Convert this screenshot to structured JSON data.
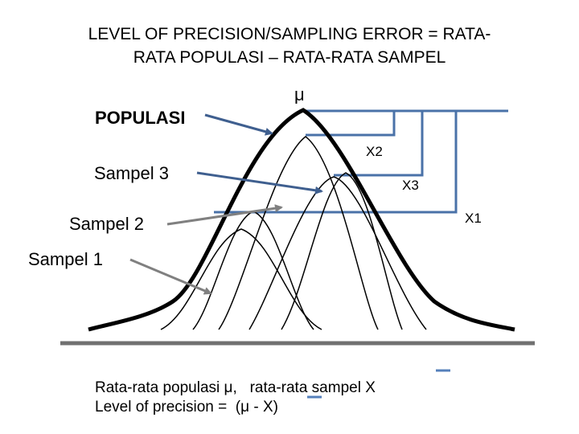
{
  "title": {
    "line1": "LEVEL OF PRECISION/SAMPLING ERROR = RATA-",
    "line2": "RATA POPULASI – RATA-RATA SAMPEL"
  },
  "labels": {
    "mu": "μ",
    "populasi": "POPULASI",
    "sampel3": "Sampel 3",
    "sampel2": "Sampel 2",
    "sampel1": "Sampel 1",
    "x2": "X2",
    "x3": "X3",
    "x1": "X1"
  },
  "footnote": {
    "line1": "Rata-rata populasi μ,   rata-rata sampel X",
    "line2": "Level of precision =  (μ - X)"
  },
  "colors": {
    "arrow_blue": "#3f5f8f",
    "arrow_gray": "#808080",
    "bracket_blue": "#4a72a8",
    "axis_gray": "#707070",
    "overbar_blue": "#5580bb"
  }
}
